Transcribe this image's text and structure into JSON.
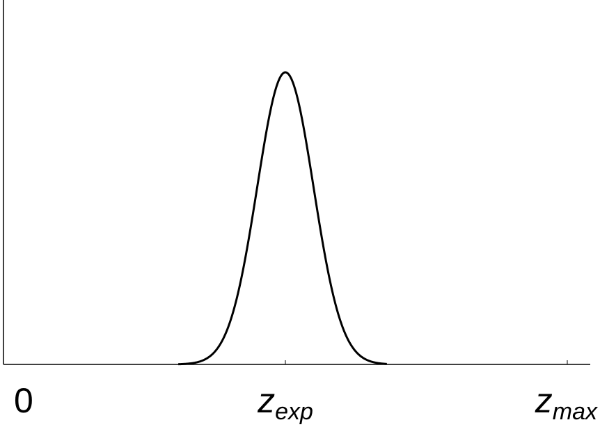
{
  "chart_data": {
    "type": "line",
    "title": "",
    "xlabel": "",
    "ylabel": "",
    "grid": false,
    "legend": "none",
    "xlim": [
      0,
      1
    ],
    "ylim": [
      0,
      1.2
    ],
    "ticks": [
      {
        "x": 0,
        "main": "0",
        "sub": ""
      },
      {
        "x": 0.5,
        "main": "z",
        "sub": "exp"
      },
      {
        "x": 1,
        "main": "z",
        "sub": "max"
      }
    ],
    "series": [
      {
        "color": "#000000",
        "shape": "gaussian",
        "center": 0.5,
        "sigma": 0.05,
        "peak": 1.0
      }
    ]
  }
}
